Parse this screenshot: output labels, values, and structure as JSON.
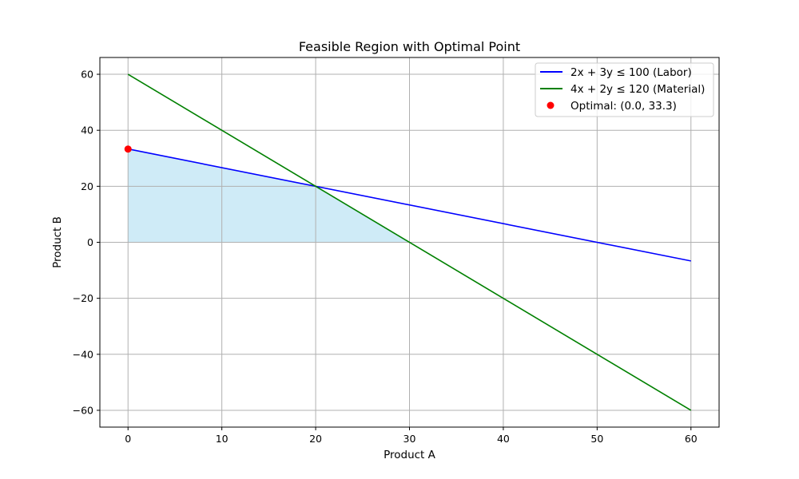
{
  "chart_data": {
    "type": "line",
    "title": "Feasible Region with Optimal Point",
    "xlabel": "Product A",
    "ylabel": "Product B",
    "xlim": [
      -3,
      63
    ],
    "ylim": [
      -66,
      66
    ],
    "x_ticks": [
      0,
      10,
      20,
      30,
      40,
      50,
      60
    ],
    "y_ticks": [
      -60,
      -40,
      -20,
      0,
      20,
      40,
      60
    ],
    "grid": true,
    "legend_position": "top-right",
    "series": [
      {
        "name": "2x + 3y ≤ 100 (Labor)",
        "color": "#0000ff",
        "x": [
          0,
          60
        ],
        "y": [
          33.33,
          -6.67
        ]
      },
      {
        "name": "4x + 2y ≤ 120 (Material)",
        "color": "#008000",
        "x": [
          0,
          60
        ],
        "y": [
          60,
          -60
        ]
      }
    ],
    "feasible_region": {
      "color": "#87ceeb",
      "vertices": [
        [
          0,
          0
        ],
        [
          0,
          33.33
        ],
        [
          20,
          20
        ],
        [
          30,
          0
        ]
      ]
    },
    "optimal_point": {
      "label": "Optimal: (0.0, 33.3)",
      "color": "#ff0000",
      "x": 0.0,
      "y": 33.3
    }
  }
}
